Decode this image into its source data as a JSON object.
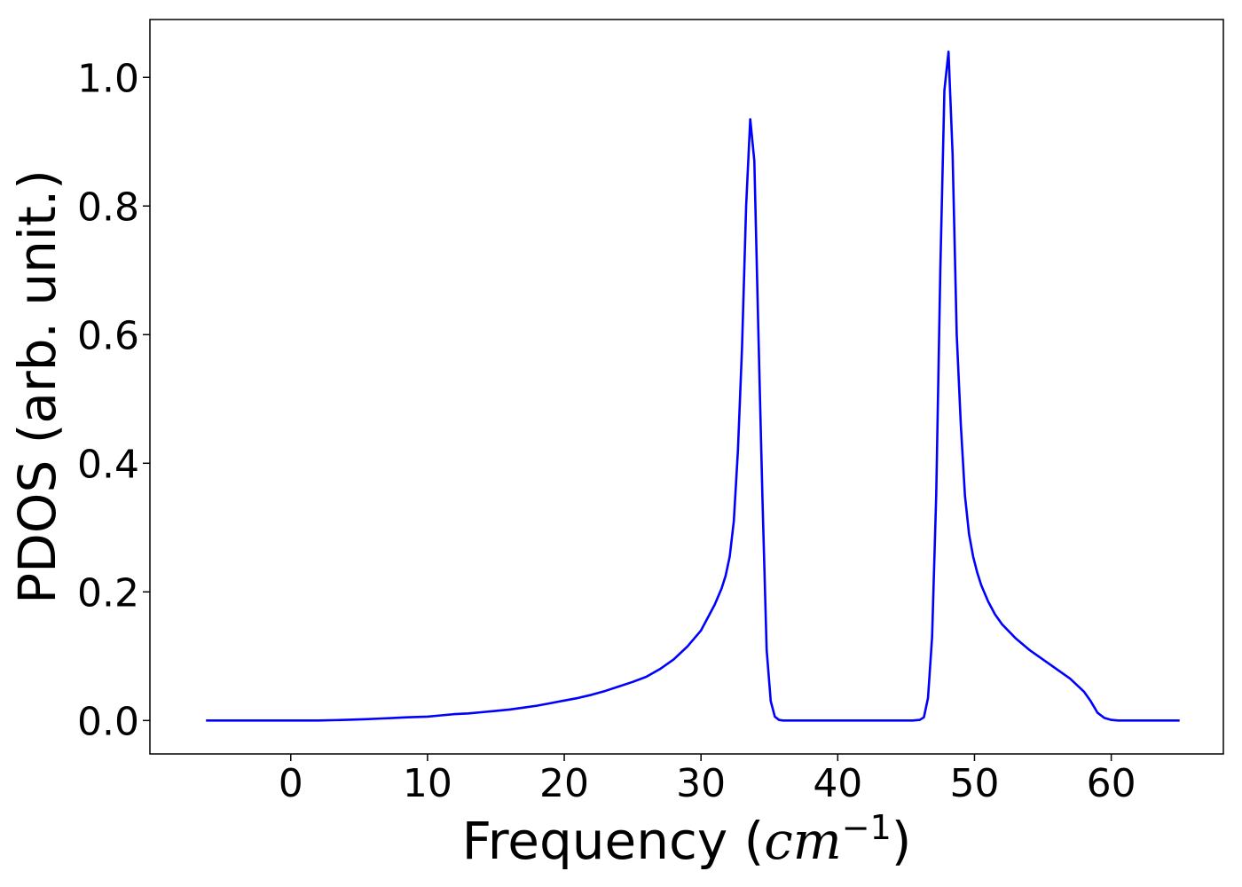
{
  "chart_data": {
    "type": "line",
    "title": "",
    "xlabel": {
      "prefix": "Frequency (",
      "unit": "cm",
      "exponent": "−1",
      "suffix": ")"
    },
    "ylabel": "PDOS (arb. unit.)",
    "xlim": [
      -10.3,
      68.2
    ],
    "ylim": [
      -0.052,
      1.09
    ],
    "xticks": [
      {
        "value": 0,
        "label": "0"
      },
      {
        "value": 10,
        "label": "10"
      },
      {
        "value": 20,
        "label": "20"
      },
      {
        "value": 30,
        "label": "30"
      },
      {
        "value": 40,
        "label": "40"
      },
      {
        "value": 50,
        "label": "50"
      },
      {
        "value": 60,
        "label": "60"
      }
    ],
    "yticks": [
      {
        "value": 0.0,
        "label": "0.0"
      },
      {
        "value": 0.2,
        "label": "0.2"
      },
      {
        "value": 0.4,
        "label": "0.4"
      },
      {
        "value": 0.6,
        "label": "0.6"
      },
      {
        "value": 0.8,
        "label": "0.8"
      },
      {
        "value": 1.0,
        "label": "1.0"
      }
    ],
    "grid": false,
    "series": [
      {
        "color": "#0000ff",
        "x": [
          -6.2,
          -2,
          2,
          4,
          5.5,
          6.5,
          7.5,
          8.5,
          10,
          11,
          12,
          13,
          14,
          15,
          16,
          17,
          18,
          19,
          20,
          21,
          22,
          23,
          24,
          25,
          26,
          27,
          28,
          29,
          30,
          30.5,
          31,
          31.5,
          31.8,
          32.1,
          32.4,
          32.7,
          33,
          33.3,
          33.6,
          33.9,
          34.2,
          34.5,
          34.8,
          35.1,
          35.4,
          35.7,
          36,
          36.5,
          38,
          40,
          42,
          44,
          45.5,
          46,
          46.3,
          46.6,
          46.9,
          47.2,
          47.5,
          47.8,
          48.1,
          48.4,
          48.7,
          49,
          49.3,
          49.6,
          49.9,
          50.2,
          50.5,
          51,
          51.5,
          52,
          53,
          54,
          55,
          56,
          57,
          57.5,
          58,
          58.5,
          59,
          59.5,
          60,
          60.5,
          61,
          63,
          65
        ],
        "y": [
          0,
          0,
          0,
          0.001,
          0.002,
          0.003,
          0.004,
          0.005,
          0.006,
          0.008,
          0.01,
          0.011,
          0.013,
          0.015,
          0.017,
          0.02,
          0.023,
          0.027,
          0.031,
          0.035,
          0.04,
          0.046,
          0.053,
          0.06,
          0.068,
          0.08,
          0.095,
          0.115,
          0.14,
          0.16,
          0.18,
          0.205,
          0.225,
          0.255,
          0.31,
          0.42,
          0.58,
          0.8,
          0.935,
          0.87,
          0.6,
          0.34,
          0.11,
          0.03,
          0.006,
          0.001,
          0,
          0,
          0,
          0,
          0,
          0,
          0,
          0.001,
          0.005,
          0.035,
          0.13,
          0.35,
          0.7,
          0.98,
          1.04,
          0.88,
          0.6,
          0.46,
          0.35,
          0.29,
          0.255,
          0.23,
          0.21,
          0.185,
          0.165,
          0.15,
          0.128,
          0.11,
          0.095,
          0.08,
          0.065,
          0.055,
          0.045,
          0.03,
          0.012,
          0.004,
          0.001,
          0,
          0,
          0,
          0
        ]
      }
    ]
  }
}
